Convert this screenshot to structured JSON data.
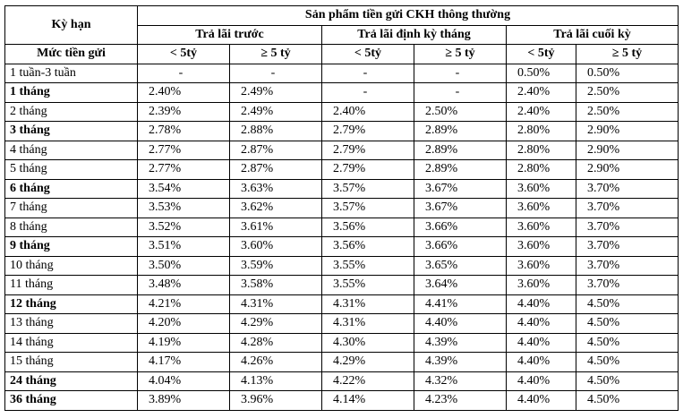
{
  "header": {
    "term_label": "Kỳ hạn",
    "product_label": "Sản phẩm tiền gửi CKH thông thường",
    "amount_label": "Mức tiền gửi",
    "groups": [
      {
        "label": "Trả lãi trước",
        "sub": [
          "< 5tỷ",
          "≥ 5 tỷ"
        ]
      },
      {
        "label": "Trả lãi định kỳ tháng",
        "sub": [
          "< 5tỷ",
          "≥ 5 tỷ"
        ]
      },
      {
        "label": "Trả lãi cuối kỳ",
        "sub": [
          "< 5tỷ",
          "≥ 5 tỷ"
        ]
      }
    ]
  },
  "rows": [
    {
      "term": "1 tuần-3 tuần",
      "bold": false,
      "values": [
        "-",
        "-",
        "-",
        "-",
        "0.50%",
        "0.50%"
      ]
    },
    {
      "term": "1 tháng",
      "bold": true,
      "values": [
        "2.40%",
        "2.49%",
        "-",
        "-",
        "2.40%",
        "2.50%"
      ]
    },
    {
      "term": "2 tháng",
      "bold": false,
      "values": [
        "2.39%",
        "2.49%",
        "2.40%",
        "2.50%",
        "2.40%",
        "2.50%"
      ]
    },
    {
      "term": "3 tháng",
      "bold": true,
      "values": [
        "2.78%",
        "2.88%",
        "2.79%",
        "2.89%",
        "2.80%",
        "2.90%"
      ]
    },
    {
      "term": "4 tháng",
      "bold": false,
      "values": [
        "2.77%",
        "2.87%",
        "2.79%",
        "2.89%",
        "2.80%",
        "2.90%"
      ]
    },
    {
      "term": "5 tháng",
      "bold": false,
      "values": [
        "2.77%",
        "2.87%",
        "2.79%",
        "2.89%",
        "2.80%",
        "2.90%"
      ]
    },
    {
      "term": "6 tháng",
      "bold": true,
      "values": [
        "3.54%",
        "3.63%",
        "3.57%",
        "3.67%",
        "3.60%",
        "3.70%"
      ]
    },
    {
      "term": "7 tháng",
      "bold": false,
      "values": [
        "3.53%",
        "3.62%",
        "3.57%",
        "3.67%",
        "3.60%",
        "3.70%"
      ]
    },
    {
      "term": "8 tháng",
      "bold": false,
      "values": [
        "3.52%",
        "3.61%",
        "3.56%",
        "3.66%",
        "3.60%",
        "3.70%"
      ]
    },
    {
      "term": "9 tháng",
      "bold": true,
      "values": [
        "3.51%",
        "3.60%",
        "3.56%",
        "3.66%",
        "3.60%",
        "3.70%"
      ]
    },
    {
      "term": "10 tháng",
      "bold": false,
      "values": [
        "3.50%",
        "3.59%",
        "3.55%",
        "3.65%",
        "3.60%",
        "3.70%"
      ]
    },
    {
      "term": "11 tháng",
      "bold": false,
      "values": [
        "3.48%",
        "3.58%",
        "3.55%",
        "3.64%",
        "3.60%",
        "3.70%"
      ]
    },
    {
      "term": "12 tháng",
      "bold": true,
      "values": [
        "4.21%",
        "4.31%",
        "4.31%",
        "4.41%",
        "4.40%",
        "4.50%"
      ]
    },
    {
      "term": "13 tháng",
      "bold": false,
      "values": [
        "4.20%",
        "4.29%",
        "4.31%",
        "4.40%",
        "4.40%",
        "4.50%"
      ]
    },
    {
      "term": "14 tháng",
      "bold": false,
      "values": [
        "4.19%",
        "4.28%",
        "4.30%",
        "4.39%",
        "4.40%",
        "4.50%"
      ]
    },
    {
      "term": "15 tháng",
      "bold": false,
      "values": [
        "4.17%",
        "4.26%",
        "4.29%",
        "4.39%",
        "4.40%",
        "4.50%"
      ]
    },
    {
      "term": "24 tháng",
      "bold": true,
      "values": [
        "4.04%",
        "4.13%",
        "4.22%",
        "4.32%",
        "4.40%",
        "4.50%"
      ]
    },
    {
      "term": "36 tháng",
      "bold": true,
      "values": [
        "3.89%",
        "3.96%",
        "4.14%",
        "4.23%",
        "4.40%",
        "4.50%"
      ]
    }
  ]
}
